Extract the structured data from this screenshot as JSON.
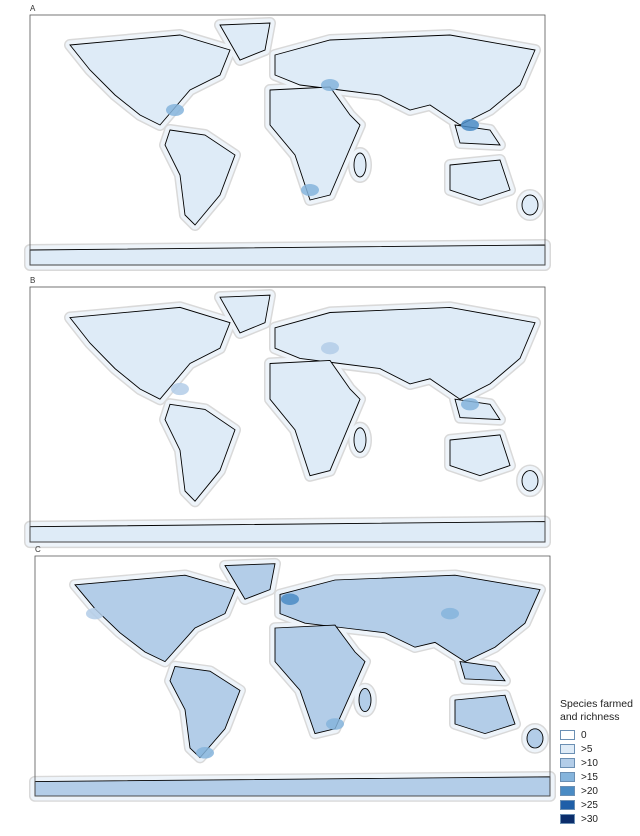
{
  "panels": [
    {
      "label": "A"
    },
    {
      "label": "B"
    },
    {
      "label": "C"
    }
  ],
  "legend": {
    "title": "Species farmed and richness",
    "items": [
      {
        "label": "0",
        "color": "#ffffff"
      },
      {
        "label": ">5",
        "color": "#deebf7"
      },
      {
        "label": ">10",
        "color": "#b3cde8"
      },
      {
        "label": ">15",
        "color": "#85b4dc"
      },
      {
        "label": ">20",
        "color": "#4a8bc4"
      },
      {
        "label": ">25",
        "color": "#1f5fa8"
      },
      {
        "label": ">30",
        "color": "#0b2d6b"
      }
    ]
  }
}
